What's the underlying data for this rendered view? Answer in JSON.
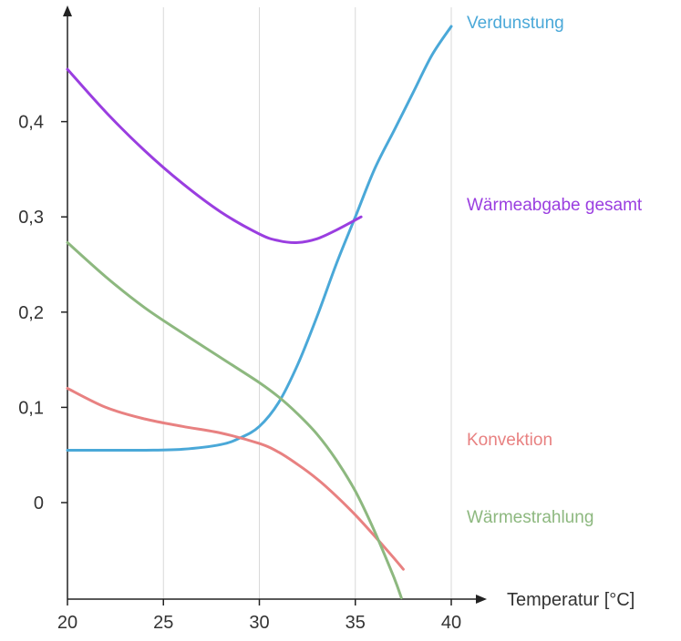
{
  "chart_data": {
    "type": "line",
    "title": "",
    "xlabel": "Temperatur [°C]",
    "ylabel": "",
    "xlim": [
      20,
      40
    ],
    "ylim": [
      -0.1,
      0.5
    ],
    "xticks": [
      "20",
      "25",
      "30",
      "35",
      "40"
    ],
    "yticks": [
      "0",
      "0,1",
      "0,2",
      "0,3",
      "0,4"
    ],
    "grid": "vertical",
    "legend": "inline-right",
    "series": [
      {
        "name": "Verdunstung",
        "color": "#4aa8d8",
        "x": [
          20,
          22,
          24,
          26,
          28,
          29,
          30,
          31,
          32,
          33,
          34,
          35,
          36,
          37,
          38,
          39,
          40
        ],
        "y": [
          0.055,
          0.055,
          0.055,
          0.056,
          0.061,
          0.068,
          0.08,
          0.105,
          0.145,
          0.195,
          0.25,
          0.3,
          0.35,
          0.39,
          0.43,
          0.47,
          0.5
        ]
      },
      {
        "name": "Wärmeabgabe gesamt",
        "color": "#9a3ee0",
        "x": [
          20,
          22,
          24,
          26,
          28,
          30,
          31,
          32,
          33,
          34,
          35.3
        ],
        "y": [
          0.455,
          0.41,
          0.37,
          0.335,
          0.305,
          0.282,
          0.275,
          0.273,
          0.277,
          0.286,
          0.3
        ]
      },
      {
        "name": "Konvektion",
        "color": "#e88181",
        "x": [
          20,
          22,
          24,
          26,
          28,
          30,
          31,
          32,
          33,
          34,
          35,
          36,
          37,
          37.5
        ],
        "y": [
          0.12,
          0.1,
          0.088,
          0.08,
          0.073,
          0.062,
          0.053,
          0.04,
          0.025,
          0.007,
          -0.013,
          -0.035,
          -0.058,
          -0.07
        ]
      },
      {
        "name": "Wärmestrahlung",
        "color": "#8db87f",
        "x": [
          20,
          22,
          24,
          26,
          28,
          30,
          31,
          32,
          33,
          34,
          35,
          36,
          37,
          37.4
        ],
        "y": [
          0.273,
          0.237,
          0.205,
          0.178,
          0.152,
          0.126,
          0.111,
          0.093,
          0.072,
          0.045,
          0.012,
          -0.03,
          -0.078,
          -0.1
        ]
      }
    ]
  }
}
